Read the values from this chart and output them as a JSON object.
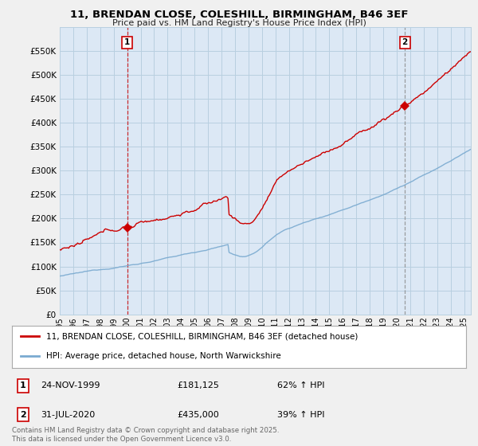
{
  "title_line1": "11, BRENDAN CLOSE, COLESHILL, BIRMINGHAM, B46 3EF",
  "title_line2": "Price paid vs. HM Land Registry's House Price Index (HPI)",
  "bg_color": "#f0f0f0",
  "plot_bg_color": "#dce8f5",
  "grid_color": "#b8cfe0",
  "red_color": "#cc0000",
  "blue_color": "#7aaad0",
  "ylim": [
    0,
    600000
  ],
  "yticks": [
    0,
    50000,
    100000,
    150000,
    200000,
    250000,
    300000,
    350000,
    400000,
    450000,
    500000,
    550000
  ],
  "ytick_labels": [
    "£0",
    "£50K",
    "£100K",
    "£150K",
    "£200K",
    "£250K",
    "£300K",
    "£350K",
    "£400K",
    "£450K",
    "£500K",
    "£550K"
  ],
  "sale1_date": "24-NOV-1999",
  "sale1_price": 181125,
  "sale1_label": "62% ↑ HPI",
  "sale1_year": 2000.0,
  "sale2_date": "31-JUL-2020",
  "sale2_price": 435000,
  "sale2_label": "39% ↑ HPI",
  "sale2_year": 2020.6,
  "legend_line1": "11, BRENDAN CLOSE, COLESHILL, BIRMINGHAM, B46 3EF (detached house)",
  "legend_line2": "HPI: Average price, detached house, North Warwickshire",
  "footnote": "Contains HM Land Registry data © Crown copyright and database right 2025.\nThis data is licensed under the Open Government Licence v3.0.",
  "xmin": 1995,
  "xmax": 2025.5
}
